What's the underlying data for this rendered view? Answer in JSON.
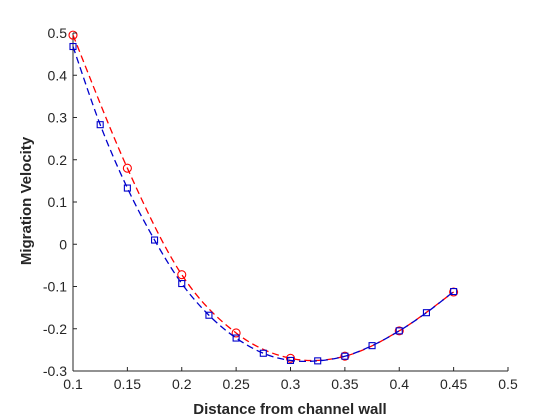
{
  "chart_data": {
    "type": "line",
    "title": "",
    "xlabel": "Distance from channel wall",
    "ylabel": "Migration Velocity",
    "xlim": [
      0.1,
      0.5
    ],
    "ylim": [
      -0.3,
      0.5
    ],
    "xticks": [
      "0.1",
      "0.15",
      "0.2",
      "0.25",
      "0.3",
      "0.35",
      "0.4",
      "0.45",
      "0.5"
    ],
    "yticks": [
      "0.5",
      "0.4",
      "0.3",
      "0.2",
      "0.1",
      "0",
      "-0.1",
      "-0.2",
      "-0.3"
    ],
    "grid": false,
    "legend": "none",
    "series": [
      {
        "color": "#ff0000",
        "line_style": "dashed",
        "marker": "circle",
        "x": [
          0.1,
          0.15,
          0.2,
          0.25,
          0.3,
          0.35,
          0.4,
          0.45
        ],
        "y": [
          0.495,
          0.18,
          -0.072,
          -0.21,
          -0.27,
          -0.265,
          -0.205,
          -0.113
        ]
      },
      {
        "color": "#0000cc",
        "line_style": "dashed",
        "marker": "square",
        "x": [
          0.1,
          0.125,
          0.15,
          0.175,
          0.2,
          0.225,
          0.25,
          0.275,
          0.3,
          0.325,
          0.35,
          0.375,
          0.4,
          0.425,
          0.45
        ],
        "y": [
          0.468,
          0.283,
          0.133,
          0.01,
          -0.093,
          -0.168,
          -0.222,
          -0.258,
          -0.275,
          -0.276,
          -0.265,
          -0.24,
          -0.205,
          -0.162,
          -0.112
        ]
      }
    ]
  }
}
